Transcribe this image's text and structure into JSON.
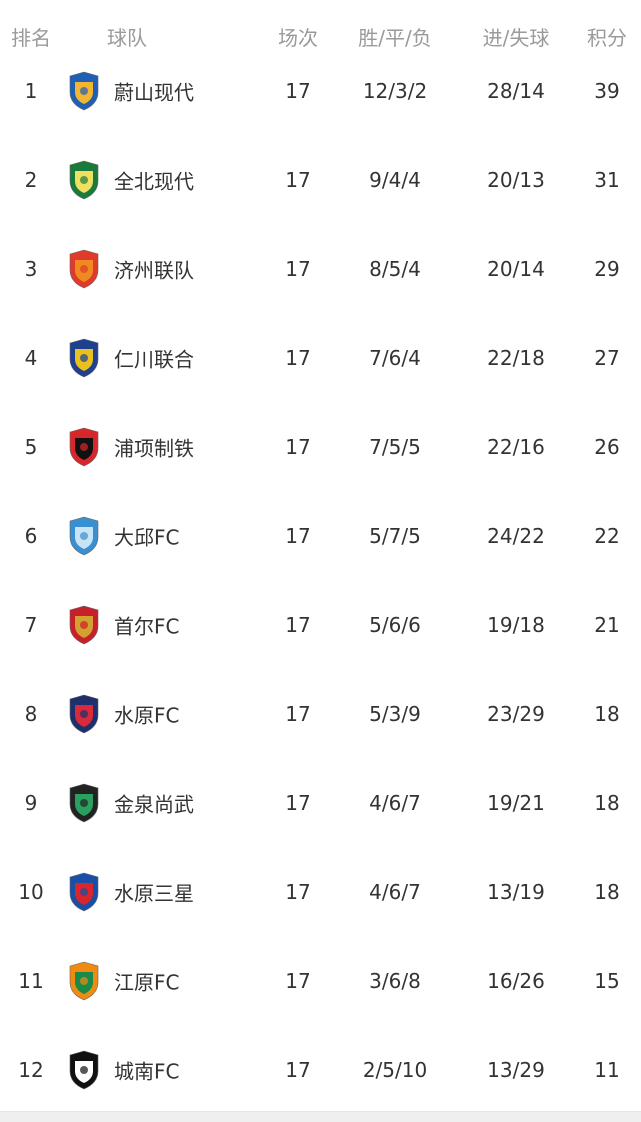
{
  "header": {
    "rank": "排名",
    "team": "球队",
    "played": "场次",
    "wdl": "胜/平/负",
    "goals": "进/失球",
    "points": "积分"
  },
  "rows": [
    {
      "rank": "1",
      "team": "蔚山现代",
      "played": "17",
      "wdl": "12/3/2",
      "goals": "28/14",
      "points": "39",
      "logo": "ulsan-hyundai-crest",
      "colors": [
        "#1f5fb4",
        "#f2b632"
      ]
    },
    {
      "rank": "2",
      "team": "全北现代",
      "played": "17",
      "wdl": "9/4/4",
      "goals": "20/13",
      "points": "31",
      "logo": "jeonbuk-crest",
      "colors": [
        "#1a7a3c",
        "#f0e060"
      ]
    },
    {
      "rank": "3",
      "team": "济州联队",
      "played": "17",
      "wdl": "8/5/4",
      "goals": "20/14",
      "points": "29",
      "logo": "jeju-united-crest",
      "colors": [
        "#e03a2a",
        "#f08a20"
      ]
    },
    {
      "rank": "4",
      "team": "仁川联合",
      "played": "17",
      "wdl": "7/6/4",
      "goals": "22/18",
      "points": "27",
      "logo": "incheon-united-crest",
      "colors": [
        "#1f3f8f",
        "#e8c020"
      ]
    },
    {
      "rank": "5",
      "team": "浦项制铁",
      "played": "17",
      "wdl": "7/5/5",
      "goals": "22/16",
      "points": "26",
      "logo": "pohang-steelers-crest",
      "colors": [
        "#d8262a",
        "#111111"
      ]
    },
    {
      "rank": "6",
      "team": "大邱FC",
      "played": "17",
      "wdl": "5/7/5",
      "goals": "24/22",
      "points": "22",
      "logo": "daegu-fc-crest",
      "colors": [
        "#3a8fd0",
        "#c8e4f4"
      ]
    },
    {
      "rank": "7",
      "team": "首尔FC",
      "played": "17",
      "wdl": "5/6/6",
      "goals": "19/18",
      "points": "21",
      "logo": "fc-seoul-crest",
      "colors": [
        "#c8202a",
        "#d4a030"
      ]
    },
    {
      "rank": "8",
      "team": "水原FC",
      "played": "17",
      "wdl": "5/3/9",
      "goals": "23/29",
      "points": "18",
      "logo": "suwon-fc-crest",
      "colors": [
        "#1e2f6e",
        "#d82a3a"
      ]
    },
    {
      "rank": "9",
      "team": "金泉尚武",
      "played": "17",
      "wdl": "4/6/7",
      "goals": "19/21",
      "points": "18",
      "logo": "gimcheon-sangmu-crest",
      "colors": [
        "#222222",
        "#2aa060"
      ]
    },
    {
      "rank": "10",
      "team": "水原三星",
      "played": "17",
      "wdl": "4/6/7",
      "goals": "13/19",
      "points": "18",
      "logo": "suwon-samsung-crest",
      "colors": [
        "#1a4fa8",
        "#d8262a"
      ]
    },
    {
      "rank": "11",
      "team": "江原FC",
      "played": "17",
      "wdl": "3/6/8",
      "goals": "16/26",
      "points": "15",
      "logo": "gangwon-fc-crest",
      "colors": [
        "#f08a10",
        "#1a8a4a"
      ]
    },
    {
      "rank": "12",
      "team": "城南FC",
      "played": "17",
      "wdl": "2/5/10",
      "goals": "13/29",
      "points": "11",
      "logo": "seongnam-fc-crest",
      "colors": [
        "#111111",
        "#ffffff"
      ]
    }
  ]
}
